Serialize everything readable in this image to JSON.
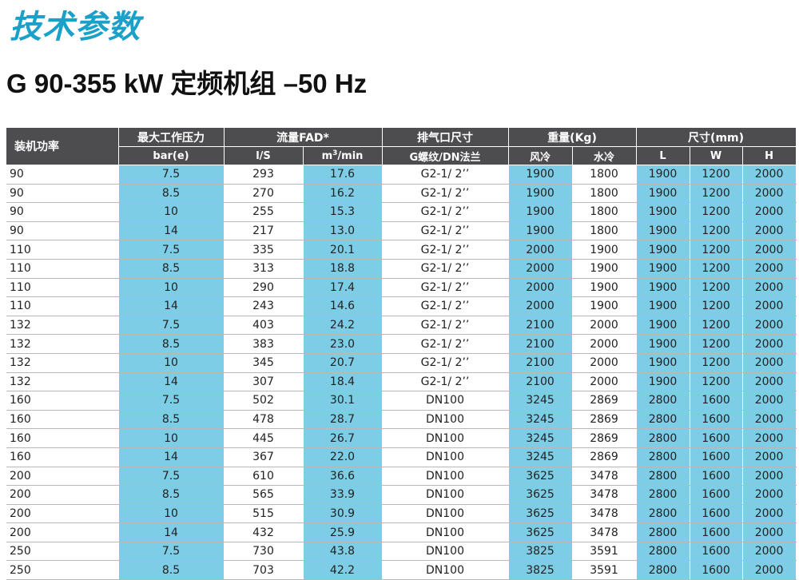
{
  "heading": "技术参数",
  "subheading": "G 90-355 kW 定频机组 –50 Hz",
  "table": {
    "group_headers": {
      "power": "装机功率",
      "pressure": "最大工作压力",
      "fad": "流量FAD*",
      "outlet": "排气口尺寸",
      "weight": "重量(Kg)",
      "size": "尺寸(mm)"
    },
    "sub_headers": {
      "pressure": "bar(e)",
      "fad_ls": "l/S",
      "fad_m3_unit": "m",
      "fad_m3_sup": "3",
      "fad_m3_rest": "/min",
      "outlet": "G螺纹/DN法兰",
      "weight_air": "风冷",
      "weight_water": "水冷",
      "size_l": "L",
      "size_w": "W",
      "size_h": "H"
    },
    "rows": [
      [
        "90",
        "7.5",
        "293",
        "17.6",
        "G2-1/ 2’’",
        "1900",
        "1800",
        "1900",
        "1200",
        "2000"
      ],
      [
        "90",
        "8.5",
        "270",
        "16.2",
        "G2-1/ 2’’",
        "1900",
        "1800",
        "1900",
        "1200",
        "2000"
      ],
      [
        "90",
        "10",
        "255",
        "15.3",
        "G2-1/ 2’’",
        "1900",
        "1800",
        "1900",
        "1200",
        "2000"
      ],
      [
        "90",
        "14",
        "217",
        "13.0",
        "G2-1/ 2’’",
        "1900",
        "1800",
        "1900",
        "1200",
        "2000"
      ],
      [
        "110",
        "7.5",
        "335",
        "20.1",
        "G2-1/ 2’’",
        "2000",
        "1900",
        "1900",
        "1200",
        "2000"
      ],
      [
        "110",
        "8.5",
        "313",
        "18.8",
        "G2-1/ 2’’",
        "2000",
        "1900",
        "1900",
        "1200",
        "2000"
      ],
      [
        "110",
        "10",
        "290",
        "17.4",
        "G2-1/ 2’’",
        "2000",
        "1900",
        "1900",
        "1200",
        "2000"
      ],
      [
        "110",
        "14",
        "243",
        "14.6",
        "G2-1/ 2’’",
        "2000",
        "1900",
        "1900",
        "1200",
        "2000"
      ],
      [
        "132",
        "7.5",
        "403",
        "24.2",
        "G2-1/ 2’’",
        "2100",
        "2000",
        "1900",
        "1200",
        "2000"
      ],
      [
        "132",
        "8.5",
        "383",
        "23.0",
        "G2-1/ 2’’",
        "2100",
        "2000",
        "1900",
        "1200",
        "2000"
      ],
      [
        "132",
        "10",
        "345",
        "20.7",
        "G2-1/ 2’’",
        "2100",
        "2000",
        "1900",
        "1200",
        "2000"
      ],
      [
        "132",
        "14",
        "307",
        "18.4",
        "G2-1/ 2’’",
        "2100",
        "2000",
        "1900",
        "1200",
        "2000"
      ],
      [
        "160",
        "7.5",
        "502",
        "30.1",
        "DN100",
        "3245",
        "2869",
        "2800",
        "1600",
        "2000"
      ],
      [
        "160",
        "8.5",
        "478",
        "28.7",
        "DN100",
        "3245",
        "2869",
        "2800",
        "1600",
        "2000"
      ],
      [
        "160",
        "10",
        "445",
        "26.7",
        "DN100",
        "3245",
        "2869",
        "2800",
        "1600",
        "2000"
      ],
      [
        "160",
        "14",
        "367",
        "22.0",
        "DN100",
        "3245",
        "2869",
        "2800",
        "1600",
        "2000"
      ],
      [
        "200",
        "7.5",
        "610",
        "36.6",
        "DN100",
        "3625",
        "3478",
        "2800",
        "1600",
        "2000"
      ],
      [
        "200",
        "8.5",
        "565",
        "33.9",
        "DN100",
        "3625",
        "3478",
        "2800",
        "1600",
        "2000"
      ],
      [
        "200",
        "10",
        "515",
        "30.9",
        "DN100",
        "3625",
        "3478",
        "2800",
        "1600",
        "2000"
      ],
      [
        "200",
        "14",
        "432",
        "25.9",
        "DN100",
        "3625",
        "3478",
        "2800",
        "1600",
        "2000"
      ],
      [
        "250",
        "7.5",
        "730",
        "43.8",
        "DN100",
        "3825",
        "3591",
        "2800",
        "1600",
        "2000"
      ],
      [
        "250",
        "8.5",
        "703",
        "42.2",
        "DN100",
        "3825",
        "3591",
        "2800",
        "1600",
        "2000"
      ]
    ]
  },
  "colors": {
    "heading": "#1aa0c9",
    "header_bg": "#4d4d4f",
    "highlight": "#7dcde6"
  }
}
